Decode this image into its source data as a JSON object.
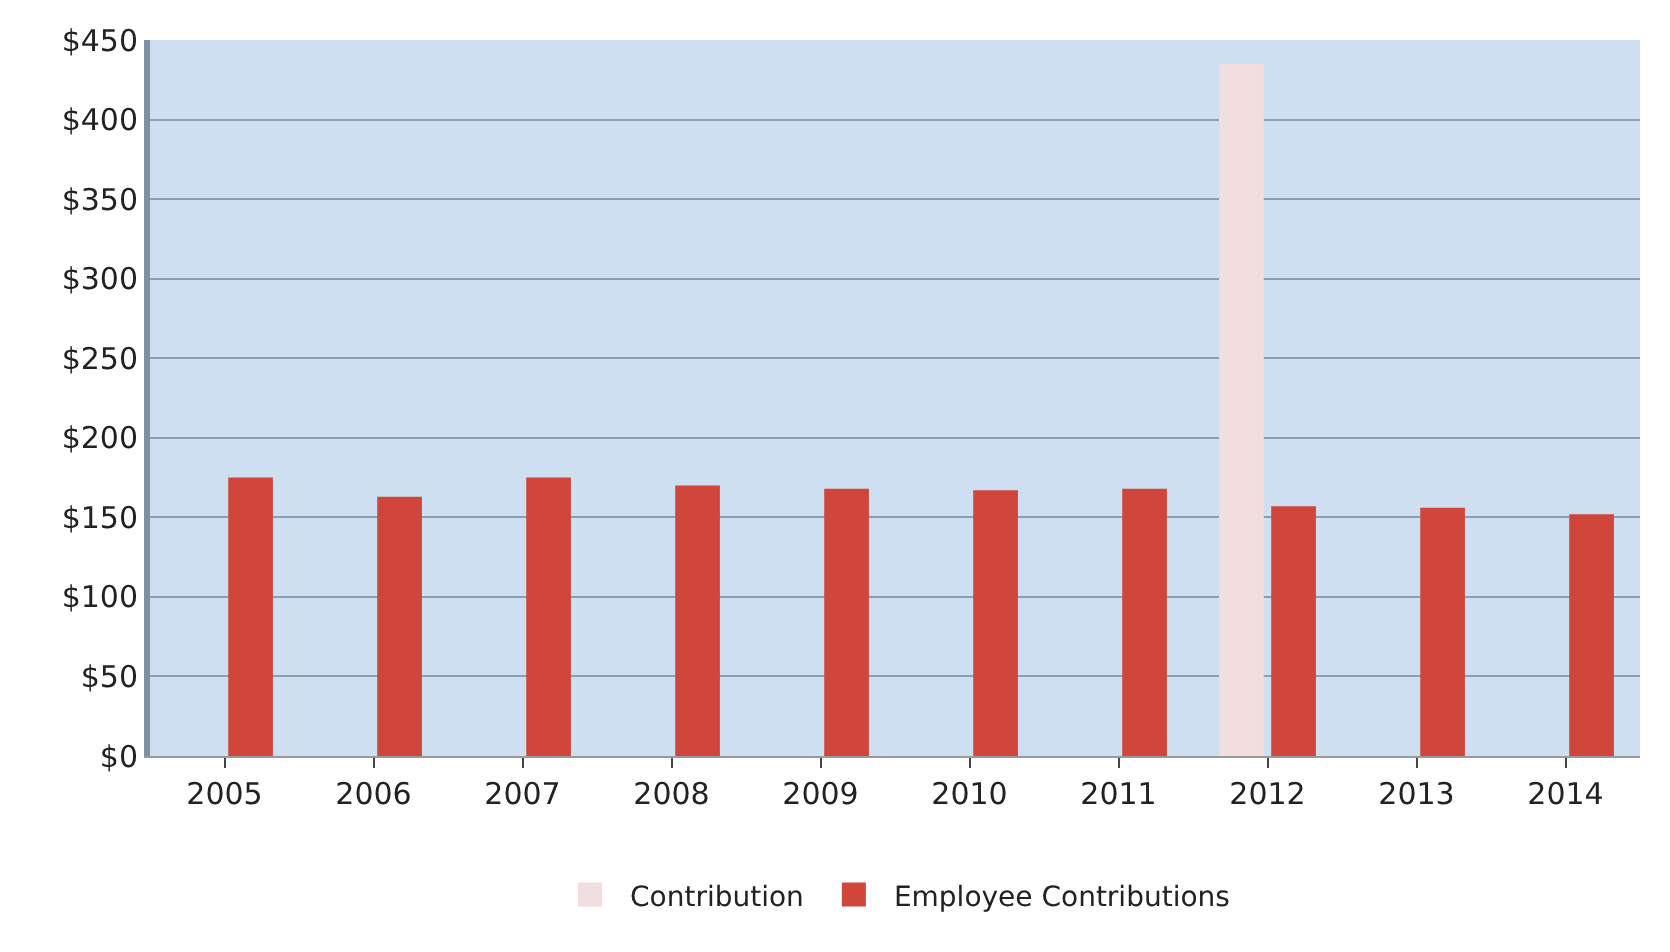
{
  "chart_data": {
    "type": "bar",
    "categories": [
      "2005",
      "2006",
      "2007",
      "2008",
      "2009",
      "2010",
      "2011",
      "2012",
      "2013",
      "2014"
    ],
    "series": [
      {
        "name": "Contribution",
        "color": "#f2dede",
        "values": [
          0,
          0,
          0,
          0,
          0,
          0,
          0,
          435,
          0,
          0
        ]
      },
      {
        "name": "Employee Contributions",
        "color": "#d0463b",
        "values": [
          175,
          163,
          175,
          170,
          168,
          167,
          168,
          157,
          156,
          152
        ]
      }
    ],
    "ylim": [
      0,
      450
    ],
    "yticks": [
      {
        "value": 0,
        "label": "$0"
      },
      {
        "value": 50,
        "label": "$50"
      },
      {
        "value": 100,
        "label": "$100"
      },
      {
        "value": 150,
        "label": "$150"
      },
      {
        "value": 200,
        "label": "$200"
      },
      {
        "value": 250,
        "label": "$250"
      },
      {
        "value": 300,
        "label": "$300"
      },
      {
        "value": 350,
        "label": "$350"
      },
      {
        "value": 400,
        "label": "$400"
      },
      {
        "value": 450,
        "label": "$450"
      }
    ],
    "grid": "y",
    "legend": "bottom"
  }
}
